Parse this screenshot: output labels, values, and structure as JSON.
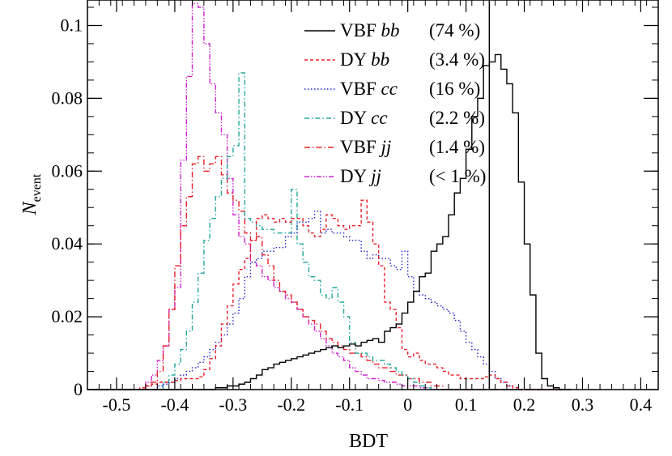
{
  "chart_data": {
    "type": "histogram",
    "xlabel": "BDT",
    "ylabel": {
      "main": "N",
      "sub": "event"
    },
    "xlim": [
      -0.55,
      0.43
    ],
    "ylim": [
      0,
      0.107
    ],
    "bin_width": 0.01,
    "first_bin_low": -0.55,
    "x_ticks": [
      {
        "value": -0.5,
        "label": "-0.5"
      },
      {
        "value": -0.4,
        "label": "-0.4"
      },
      {
        "value": -0.3,
        "label": "-0.3"
      },
      {
        "value": -0.2,
        "label": "-0.2"
      },
      {
        "value": -0.1,
        "label": "-0.1"
      },
      {
        "value": 0,
        "label": "0"
      },
      {
        "value": 0.1,
        "label": "0.1"
      },
      {
        "value": 0.2,
        "label": "0.2"
      },
      {
        "value": 0.3,
        "label": "0.3"
      },
      {
        "value": 0.4,
        "label": "0.4"
      }
    ],
    "y_ticks": [
      {
        "value": 0,
        "label": "0"
      },
      {
        "value": 0.02,
        "label": "0.02"
      },
      {
        "value": 0.04,
        "label": "0.04"
      },
      {
        "value": 0.06,
        "label": "0.06"
      },
      {
        "value": 0.08,
        "label": "0.08"
      },
      {
        "value": 0.1,
        "label": "0.1"
      }
    ],
    "cut_line": 0.14,
    "legend": [
      {
        "name": "VBF",
        "flavor": "bb",
        "pct": "(74 %)"
      },
      {
        "name": "DY",
        "flavor": "bb",
        "pct": "(3.4 %)"
      },
      {
        "name": "VBF",
        "flavor": "cc",
        "pct": "(16 %)"
      },
      {
        "name": "DY",
        "flavor": "cc",
        "pct": "(2.2 %)"
      },
      {
        "name": "VBF",
        "flavor": "jj",
        "pct": "(1.4 %)"
      },
      {
        "name": "DY",
        "flavor": "jj",
        "pct": "(< 1 %)"
      }
    ],
    "series": [
      {
        "id": "vbf-bb",
        "color": "#000000",
        "dash": "",
        "values": [
          0,
          0,
          0,
          0,
          0,
          0,
          0,
          0,
          0,
          0,
          0,
          0,
          0,
          0,
          0,
          0,
          0,
          0,
          0,
          0,
          0,
          0,
          0.0005,
          0.0005,
          0.001,
          0.001,
          0.0015,
          0.002,
          0.003,
          0.004,
          0.0055,
          0.006,
          0.007,
          0.0075,
          0.008,
          0.0085,
          0.009,
          0.0095,
          0.01,
          0.0105,
          0.011,
          0.0115,
          0.012,
          0.0115,
          0.012,
          0.0125,
          0.012,
          0.013,
          0.0135,
          0.014,
          0.013,
          0.016,
          0.017,
          0.018,
          0.021,
          0.024,
          0.027,
          0.031,
          0.032,
          0.038,
          0.04,
          0.042,
          0.048,
          0.054,
          0.058,
          0.066,
          0.075,
          0.08,
          0.089,
          0.09,
          0.092,
          0.088,
          0.084,
          0.076,
          0.057,
          0.04,
          0.026,
          0.01,
          0.003,
          0.001,
          0.0005,
          0,
          0
        ]
      },
      {
        "id": "dy-bb",
        "color": "#e8202a",
        "dash": "4,3",
        "values": [
          0,
          0,
          0,
          0,
          0,
          0,
          0,
          0,
          0,
          0.0005,
          0.001,
          0.0015,
          0.002,
          0.002,
          0.002,
          0.0025,
          0.003,
          0.003,
          0.003,
          0.0035,
          0.0055,
          0.0085,
          0.012,
          0.018,
          0.023,
          0.029,
          0.033,
          0.036,
          0.041,
          0.047,
          0.048,
          0.047,
          0.046,
          0.047,
          0.046,
          0.047,
          0.047,
          0.045,
          0.043,
          0.042,
          0.044,
          0.048,
          0.047,
          0.045,
          0.044,
          0.045,
          0.045,
          0.052,
          0.046,
          0.04,
          0.034,
          0.024,
          0.022,
          0.017,
          0.011,
          0.009,
          0.01,
          0.008,
          0.007,
          0.007,
          0.006,
          0.005,
          0.004,
          0.004,
          0.003,
          0.003,
          0.003,
          0.003,
          0.0035,
          0.004,
          0.003,
          0.002,
          0.001,
          0.0005,
          0,
          0,
          0,
          0,
          0,
          0,
          0,
          0
        ]
      },
      {
        "id": "vbf-cc",
        "color": "#2222cc",
        "dash": "1.5,2.5",
        "values": [
          0,
          0,
          0,
          0,
          0,
          0,
          0,
          0,
          0,
          0,
          0,
          0,
          0.001,
          0.0015,
          0.002,
          0.003,
          0.004,
          0.005,
          0.006,
          0.0075,
          0.009,
          0.011,
          0.013,
          0.015,
          0.018,
          0.021,
          0.025,
          0.031,
          0.035,
          0.036,
          0.038,
          0.038,
          0.039,
          0.039,
          0.042,
          0.043,
          0.046,
          0.046,
          0.047,
          0.049,
          0.043,
          0.044,
          0.043,
          0.043,
          0.042,
          0.041,
          0.041,
          0.038,
          0.036,
          0.037,
          0.036,
          0.036,
          0.034,
          0.033,
          0.038,
          0.031,
          0.027,
          0.026,
          0.025,
          0.024,
          0.023,
          0.022,
          0.021,
          0.019,
          0.016,
          0.013,
          0.011,
          0.009,
          0.007,
          0.005,
          0.003,
          0.002,
          0.001,
          0,
          0,
          0,
          0,
          0,
          0,
          0,
          0,
          0
        ]
      },
      {
        "id": "dy-cc",
        "color": "#20a89a",
        "dash": "6,3,1.5,3",
        "values": [
          0,
          0,
          0,
          0,
          0,
          0,
          0,
          0,
          0,
          0,
          0,
          0,
          0,
          0.002,
          0.004,
          0.007,
          0.011,
          0.016,
          0.024,
          0.032,
          0.041,
          0.047,
          0.053,
          0.058,
          0.064,
          0.067,
          0.087,
          0.047,
          0.046,
          0.045,
          0.044,
          0.044,
          0.043,
          0.043,
          0.043,
          0.055,
          0.04,
          0.035,
          0.031,
          0.03,
          0.026,
          0.025,
          0.028,
          0.024,
          0.02,
          0.013,
          0.01,
          0.01,
          0.009,
          0.008,
          0.008,
          0.007,
          0.006,
          0.005,
          0.004,
          0.003,
          0.002,
          0.001,
          0.0005,
          0,
          0,
          0,
          0,
          0,
          0,
          0,
          0,
          0,
          0,
          0,
          0,
          0,
          0,
          0,
          0,
          0,
          0,
          0,
          0,
          0,
          0,
          0
        ]
      },
      {
        "id": "vbf-jj",
        "color": "#e8202a",
        "dash": "7,3,1.5,3",
        "values": [
          0,
          0,
          0,
          0,
          0,
          0,
          0,
          0,
          0,
          0,
          0.001,
          0.002,
          0.005,
          0.012,
          0.022,
          0.034,
          0.045,
          0.053,
          0.062,
          0.064,
          0.06,
          0.062,
          0.064,
          0.059,
          0.054,
          0.052,
          0.049,
          0.043,
          0.041,
          0.042,
          0.037,
          0.034,
          0.03,
          0.027,
          0.026,
          0.024,
          0.022,
          0.02,
          0.019,
          0.018,
          0.016,
          0.014,
          0.013,
          0.012,
          0.011,
          0.01,
          0.01,
          0.009,
          0.008,
          0.007,
          0.006,
          0.006,
          0.005,
          0.004,
          0.004,
          0.003,
          0.003,
          0.002,
          0.002,
          0.001,
          0.001,
          0,
          0,
          0,
          0,
          0,
          0,
          0,
          0,
          0,
          0,
          0,
          0,
          0,
          0,
          0,
          0,
          0,
          0,
          0,
          0,
          0
        ]
      },
      {
        "id": "dy-jj",
        "color": "#cc22cc",
        "dash": "6,2,1.5,2,1.5,2",
        "values": [
          0,
          0,
          0,
          0,
          0,
          0,
          0,
          0,
          0,
          0,
          0.002,
          0.004,
          0.008,
          0.012,
          0.022,
          0.028,
          0.063,
          0.086,
          0.106,
          0.105,
          0.095,
          0.084,
          0.076,
          0.07,
          0.058,
          0.048,
          0.042,
          0.04,
          0.035,
          0.034,
          0.031,
          0.03,
          0.028,
          0.027,
          0.025,
          0.024,
          0.022,
          0.02,
          0.018,
          0.016,
          0.014,
          0.012,
          0.01,
          0.009,
          0.008,
          0.006,
          0.005,
          0.004,
          0.003,
          0.003,
          0.0025,
          0.002,
          0.002,
          0.0015,
          0.001,
          0.001,
          0.001,
          0.0005,
          0.0005,
          0,
          0,
          0,
          0,
          0,
          0,
          0,
          0,
          0,
          0,
          0,
          0,
          0,
          0,
          0,
          0,
          0,
          0,
          0,
          0,
          0,
          0,
          0
        ]
      }
    ]
  }
}
